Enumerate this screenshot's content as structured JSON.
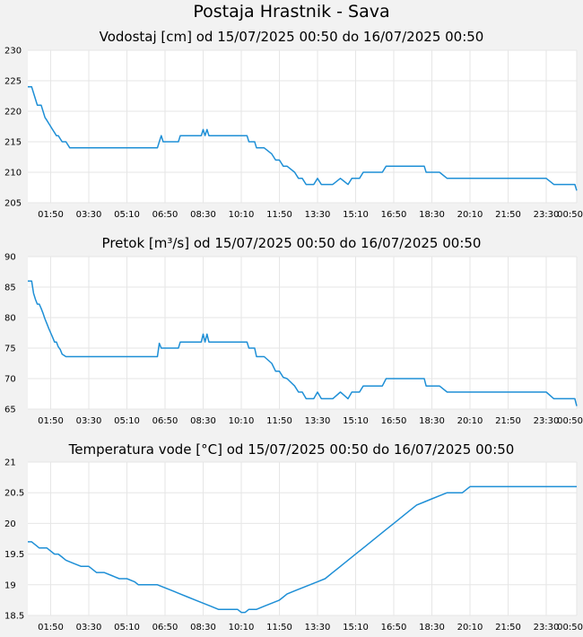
{
  "page": {
    "title": "Postaja Hrastnik - Sava"
  },
  "style": {
    "line_color": "#1e8fd6",
    "grid_color": "#e6e6e6",
    "plot_bg": "#ffffff",
    "page_bg": "#f2f2f2"
  },
  "chart_data": [
    {
      "type": "line",
      "title": "Vodostaj [cm] od 15/07/2025 00:50 do 16/07/2025 00:50",
      "xlabel": "",
      "ylabel": "",
      "grid": true,
      "xlim": [
        0,
        1440
      ],
      "ylim": [
        205,
        230
      ],
      "x_tick_labels": [
        "01:50",
        "03:30",
        "05:10",
        "06:50",
        "08:30",
        "10:10",
        "11:50",
        "13:30",
        "15:10",
        "16:50",
        "18:30",
        "20:10",
        "21:50",
        "23:30",
        "00:50"
      ],
      "y_ticks": [
        205,
        210,
        215,
        220,
        225,
        230
      ],
      "y_tick_labels": [
        "205",
        "210",
        "215",
        "220",
        "225",
        "230"
      ],
      "series": [
        {
          "x": [
            0,
            10,
            15,
            20,
            25,
            30,
            35,
            40,
            45,
            50,
            55,
            60,
            65,
            70,
            75,
            80,
            85,
            90,
            100,
            110,
            120,
            130,
            140,
            200,
            300,
            340,
            345,
            350,
            355,
            360,
            380,
            395,
            400,
            420,
            440,
            455,
            460,
            465,
            470,
            475,
            480,
            500,
            520,
            540,
            560,
            575,
            580,
            595,
            600,
            620,
            640,
            650,
            660,
            670,
            680,
            700,
            710,
            720,
            730,
            740,
            750,
            760,
            770,
            780,
            790,
            800,
            820,
            840,
            850,
            860,
            870,
            880,
            890,
            900,
            910,
            920,
            930,
            940,
            960,
            980,
            1000,
            1020,
            1040,
            1045,
            1050,
            1055,
            1060,
            1080,
            1100,
            1120,
            1140,
            1160,
            1200,
            1210,
            1220,
            1240,
            1280,
            1320,
            1360,
            1380,
            1400,
            1420,
            1435,
            1440
          ],
          "y": [
            224,
            224,
            223,
            222,
            221,
            221,
            221,
            220,
            219,
            218.5,
            218,
            217.5,
            217,
            216.5,
            216,
            216,
            215.5,
            215,
            215,
            214,
            214,
            214,
            214,
            214,
            214,
            214,
            215,
            216,
            215,
            215,
            215,
            215,
            216,
            216,
            216,
            216,
            217,
            216,
            217,
            216,
            216,
            216,
            216,
            216,
            216,
            216,
            215,
            215,
            214,
            214,
            213,
            212,
            212,
            211,
            211,
            210,
            209,
            209,
            208,
            208,
            208,
            209,
            208,
            208,
            208,
            208,
            209,
            208,
            209,
            209,
            209,
            210,
            210,
            210,
            210,
            210,
            210,
            211,
            211,
            211,
            211,
            211,
            211,
            210,
            210,
            210,
            210,
            210,
            209,
            209,
            209,
            209,
            209,
            209,
            209,
            209,
            209,
            209,
            209,
            208,
            208,
            208,
            208,
            207
          ]
        }
      ]
    },
    {
      "type": "line",
      "title": "Pretok [m³/s] od 15/07/2025 00:50 do 16/07/2025 00:50",
      "xlabel": "",
      "ylabel": "",
      "grid": true,
      "xlim": [
        0,
        1440
      ],
      "ylim": [
        65,
        90
      ],
      "x_tick_labels": [
        "01:50",
        "03:30",
        "05:10",
        "06:50",
        "08:30",
        "10:10",
        "11:50",
        "13:30",
        "15:10",
        "16:50",
        "18:30",
        "20:10",
        "21:50",
        "23:30",
        "00:50"
      ],
      "y_ticks": [
        65,
        70,
        75,
        80,
        85,
        90
      ],
      "y_tick_labels": [
        "65",
        "70",
        "75",
        "80",
        "85",
        "90"
      ],
      "series": [
        {
          "x": [
            0,
            10,
            15,
            20,
            25,
            30,
            35,
            40,
            45,
            50,
            55,
            60,
            65,
            70,
            75,
            80,
            85,
            90,
            100,
            110,
            120,
            130,
            140,
            200,
            300,
            340,
            345,
            350,
            355,
            360,
            380,
            395,
            400,
            420,
            440,
            455,
            460,
            465,
            470,
            475,
            480,
            500,
            520,
            540,
            560,
            575,
            580,
            595,
            600,
            620,
            640,
            650,
            660,
            670,
            680,
            700,
            710,
            720,
            730,
            740,
            750,
            760,
            770,
            780,
            790,
            800,
            820,
            840,
            850,
            860,
            870,
            880,
            890,
            900,
            910,
            920,
            930,
            940,
            960,
            980,
            1000,
            1020,
            1040,
            1045,
            1050,
            1055,
            1060,
            1080,
            1100,
            1120,
            1140,
            1160,
            1200,
            1210,
            1220,
            1240,
            1280,
            1320,
            1360,
            1380,
            1400,
            1420,
            1435,
            1440
          ],
          "y": [
            86,
            86,
            84,
            83,
            82.2,
            82.2,
            81.5,
            80.7,
            79.8,
            79,
            78.2,
            77.5,
            76.8,
            76,
            76,
            75.2,
            74.8,
            74,
            73.6,
            73.6,
            73.6,
            73.6,
            73.6,
            73.6,
            73.6,
            73.6,
            75.8,
            75,
            75,
            75,
            75,
            75,
            76,
            76,
            76,
            76,
            77.3,
            76,
            77.3,
            76,
            76,
            76,
            76,
            76,
            76,
            76,
            75,
            75,
            73.6,
            73.6,
            72.5,
            71.2,
            71.2,
            70.2,
            70,
            68.8,
            67.8,
            67.8,
            66.7,
            66.7,
            66.7,
            67.8,
            66.7,
            66.7,
            66.7,
            66.7,
            67.8,
            66.7,
            67.8,
            67.8,
            67.8,
            68.8,
            68.8,
            68.8,
            68.8,
            68.8,
            68.8,
            70,
            70,
            70,
            70,
            70,
            70,
            68.8,
            68.8,
            68.8,
            68.8,
            68.8,
            67.8,
            67.8,
            67.8,
            67.8,
            67.8,
            67.8,
            67.8,
            67.8,
            67.8,
            67.8,
            67.8,
            66.7,
            66.7,
            66.7,
            66.7,
            65.5
          ]
        }
      ]
    },
    {
      "type": "line",
      "title": "Temperatura vode [°C] od 15/07/2025 00:50 do 16/07/2025 00:50",
      "xlabel": "",
      "ylabel": "",
      "grid": true,
      "xlim": [
        0,
        1440
      ],
      "ylim": [
        18.5,
        21
      ],
      "x_tick_labels": [
        "01:50",
        "03:30",
        "05:10",
        "06:50",
        "08:30",
        "10:10",
        "11:50",
        "13:30",
        "15:10",
        "16:50",
        "18:30",
        "20:10",
        "21:50",
        "23:30",
        "00:50"
      ],
      "y_ticks": [
        18.5,
        19,
        19.5,
        20,
        20.5,
        21
      ],
      "y_tick_labels": [
        "18.5",
        "19",
        "19.5",
        "20",
        "20.5",
        "21"
      ],
      "series": [
        {
          "x": [
            0,
            10,
            20,
            30,
            40,
            50,
            60,
            70,
            80,
            90,
            100,
            120,
            140,
            160,
            170,
            180,
            200,
            220,
            240,
            260,
            280,
            290,
            300,
            320,
            340,
            360,
            380,
            400,
            420,
            440,
            460,
            480,
            500,
            520,
            540,
            550,
            560,
            570,
            580,
            590,
            600,
            620,
            640,
            660,
            670,
            680,
            700,
            720,
            740,
            760,
            780,
            800,
            820,
            840,
            860,
            880,
            900,
            920,
            940,
            960,
            980,
            1000,
            1020,
            1040,
            1060,
            1080,
            1100,
            1120,
            1140,
            1160,
            1180,
            1200,
            1240,
            1280,
            1320,
            1360,
            1400,
            1440
          ],
          "y": [
            19.7,
            19.7,
            19.65,
            19.6,
            19.6,
            19.6,
            19.55,
            19.5,
            19.5,
            19.45,
            19.4,
            19.35,
            19.3,
            19.3,
            19.25,
            19.2,
            19.2,
            19.15,
            19.1,
            19.1,
            19.05,
            19.0,
            19.0,
            19.0,
            19.0,
            18.95,
            18.9,
            18.85,
            18.8,
            18.75,
            18.7,
            18.65,
            18.6,
            18.6,
            18.6,
            18.6,
            18.55,
            18.55,
            18.6,
            18.6,
            18.6,
            18.65,
            18.7,
            18.75,
            18.8,
            18.85,
            18.9,
            18.95,
            19.0,
            19.05,
            19.1,
            19.2,
            19.3,
            19.4,
            19.5,
            19.6,
            19.7,
            19.8,
            19.9,
            20.0,
            20.1,
            20.2,
            20.3,
            20.35,
            20.4,
            20.45,
            20.5,
            20.5,
            20.5,
            20.6,
            20.6,
            20.6,
            20.6,
            20.6,
            20.6,
            20.6,
            20.6,
            20.6
          ]
        }
      ]
    }
  ]
}
